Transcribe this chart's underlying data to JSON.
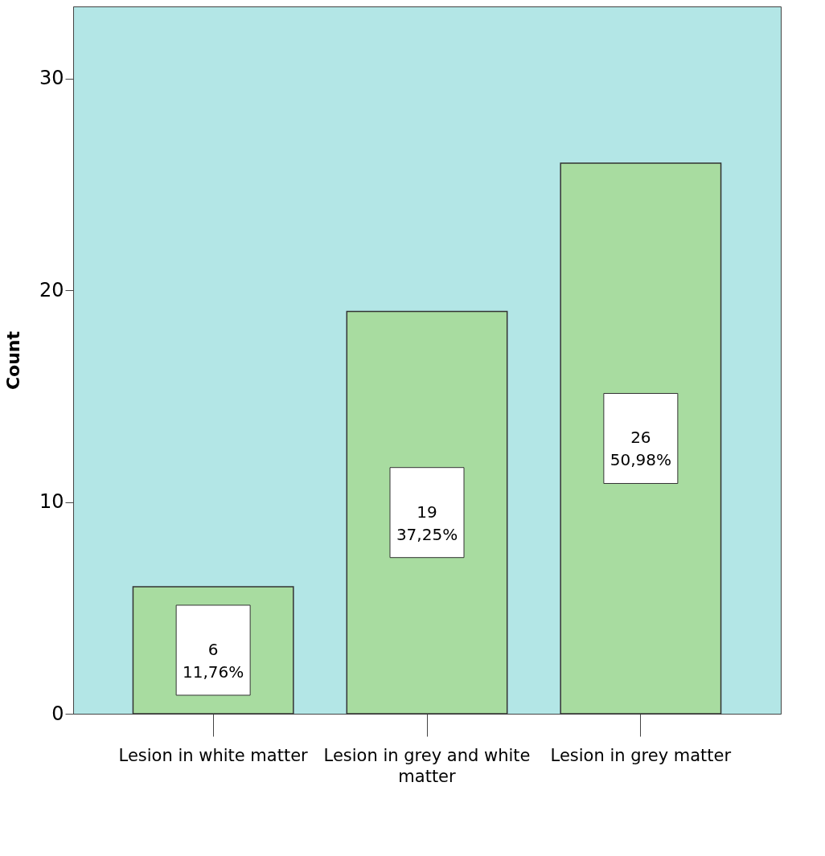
{
  "chart_data": {
    "type": "bar",
    "ylabel": "Count",
    "categories": [
      "Lesion in white matter",
      "Lesion in grey and white matter",
      "Lesion in grey matter"
    ],
    "values": [
      6,
      19,
      26
    ],
    "value_labels": [
      "6\n11,76%",
      "19\n37,25%",
      "26\n50,98%"
    ],
    "color": "#a8dca0",
    "ylim": [
      0,
      33.4
    ],
    "yticks": [
      0,
      10,
      20,
      30
    ],
    "grid": false,
    "legend": false
  }
}
